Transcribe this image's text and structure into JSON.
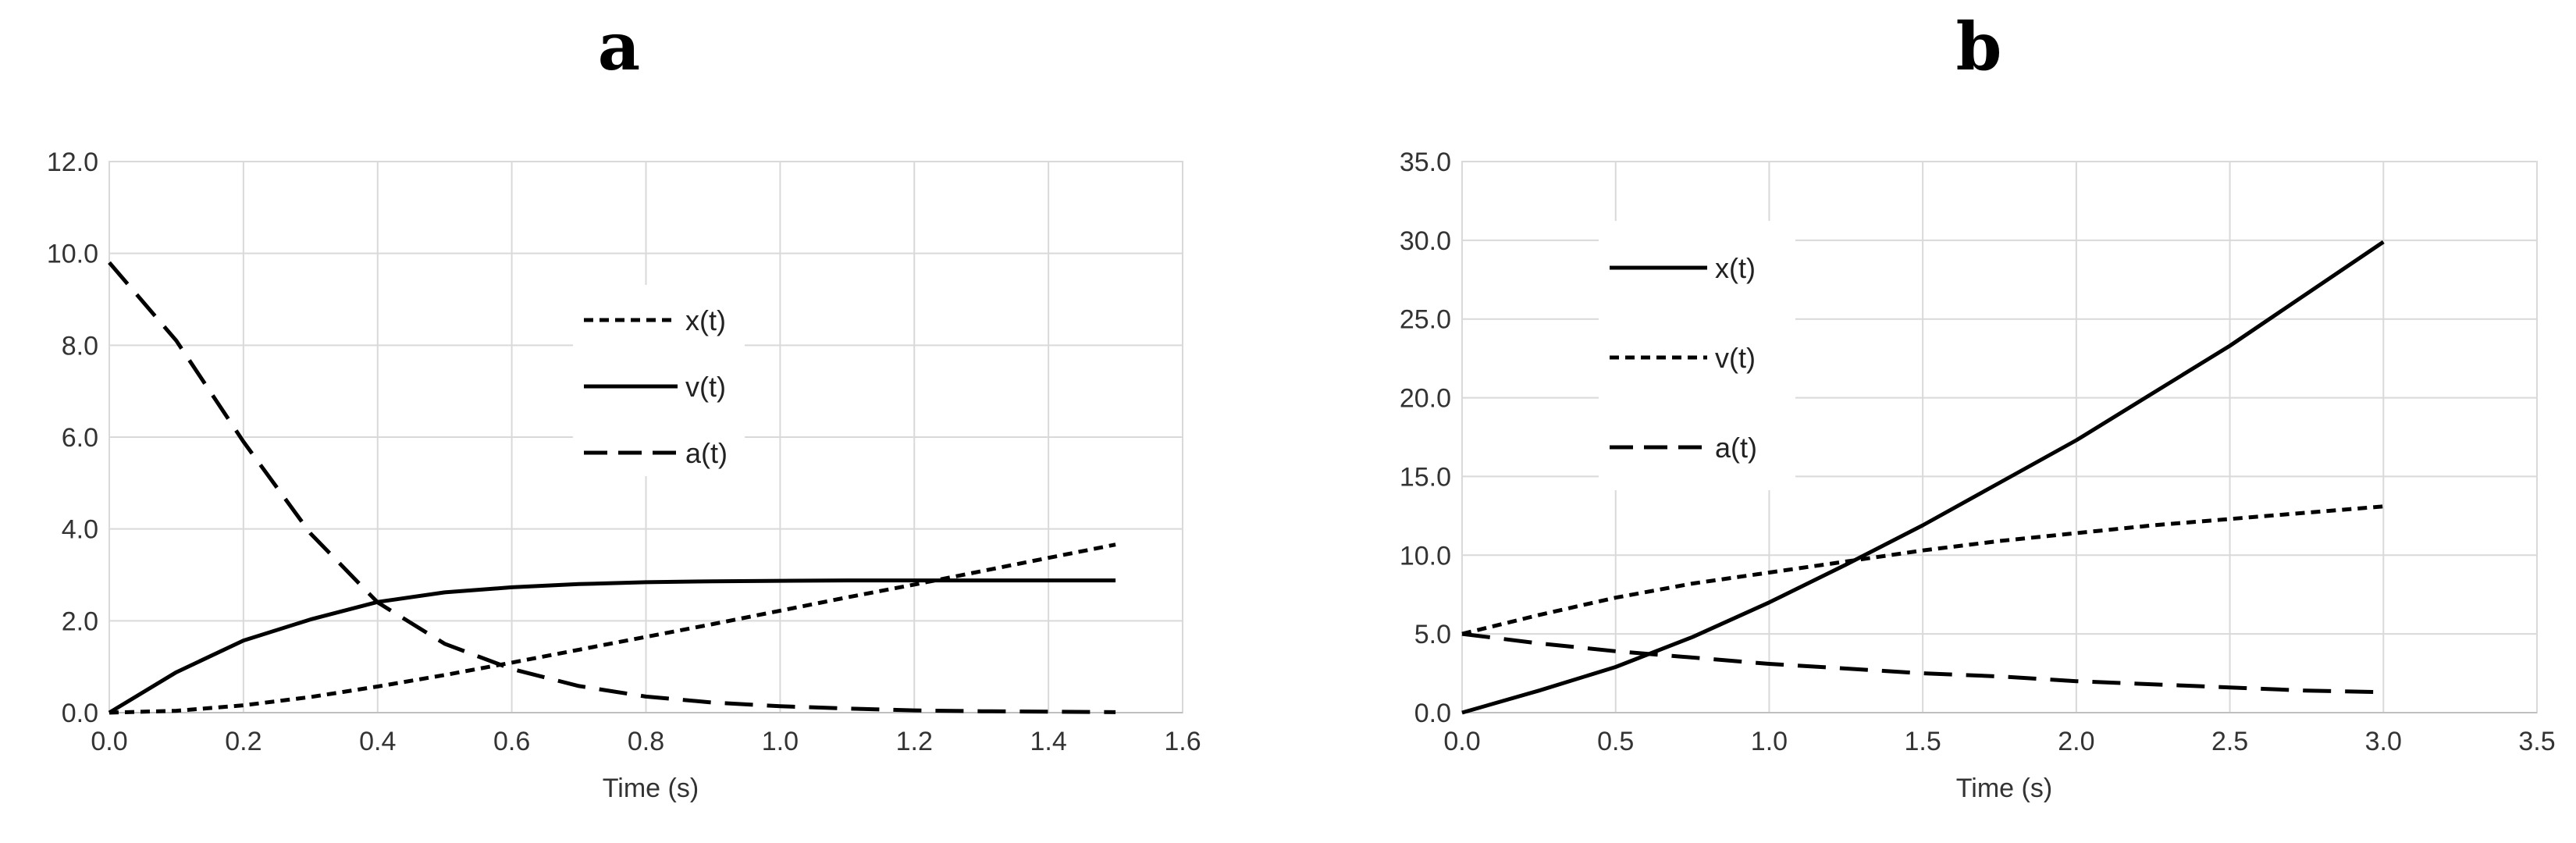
{
  "chart_data": [
    {
      "type": "line",
      "title": "a",
      "xlabel": "Time (s)",
      "ylabel": "",
      "xlim": [
        0,
        1.6
      ],
      "ylim": [
        0,
        12
      ],
      "x_ticks": [
        "0.0",
        "0.2",
        "0.4",
        "0.6",
        "0.8",
        "1.0",
        "1.2",
        "1.4",
        "1.6"
      ],
      "y_ticks": [
        "0.0",
        "2.0",
        "4.0",
        "6.0",
        "8.0",
        "10.0",
        "12.0"
      ],
      "grid": true,
      "legend": {
        "position": "center",
        "entries": [
          "x(t)",
          "v(t)",
          "a(t)"
        ]
      },
      "series": [
        {
          "name": "x(t)",
          "style": "dotted",
          "x": [
            0,
            0.1,
            0.2,
            0.3,
            0.4,
            0.5,
            0.6,
            0.7,
            0.8,
            0.9,
            1.0,
            1.1,
            1.2,
            1.3,
            1.4,
            1.5
          ],
          "y": [
            0,
            0.04,
            0.16,
            0.34,
            0.57,
            0.82,
            1.09,
            1.37,
            1.65,
            1.93,
            2.22,
            2.51,
            2.79,
            3.08,
            3.37,
            3.66
          ]
        },
        {
          "name": "v(t)",
          "style": "solid",
          "x": [
            0,
            0.1,
            0.2,
            0.3,
            0.4,
            0.5,
            0.6,
            0.7,
            0.8,
            0.9,
            1.0,
            1.1,
            1.2,
            1.3,
            1.4,
            1.5
          ],
          "y": [
            0,
            0.88,
            1.57,
            2.03,
            2.41,
            2.62,
            2.73,
            2.8,
            2.84,
            2.86,
            2.87,
            2.88,
            2.88,
            2.88,
            2.88,
            2.88
          ]
        },
        {
          "name": "a(t)",
          "style": "dashed",
          "x": [
            0,
            0.1,
            0.2,
            0.3,
            0.4,
            0.5,
            0.6,
            0.7,
            0.8,
            0.9,
            1.0,
            1.1,
            1.2,
            1.3,
            1.4,
            1.5
          ],
          "y": [
            9.8,
            8.1,
            5.9,
            3.9,
            2.4,
            1.5,
            0.95,
            0.58,
            0.35,
            0.22,
            0.14,
            0.09,
            0.05,
            0.03,
            0.02,
            0.01
          ]
        }
      ]
    },
    {
      "type": "line",
      "title": "b",
      "xlabel": "Time (s)",
      "ylabel": "",
      "xlim": [
        0,
        3.5
      ],
      "ylim": [
        0,
        35
      ],
      "x_ticks": [
        "0.0",
        "0.5",
        "1.0",
        "1.5",
        "2.0",
        "2.5",
        "3.0",
        "3.5"
      ],
      "y_ticks": [
        "0.0",
        "5.0",
        "10.0",
        "15.0",
        "20.0",
        "25.0",
        "30.0",
        "35.0"
      ],
      "grid": true,
      "legend": {
        "position": "top-left",
        "entries": [
          "x(t)",
          "v(t)",
          "a(t)"
        ]
      },
      "series": [
        {
          "name": "x(t)",
          "style": "solid",
          "x": [
            0,
            0.25,
            0.5,
            0.75,
            1.0,
            1.25,
            1.5,
            1.75,
            2.0,
            2.25,
            2.5,
            2.75,
            3.0
          ],
          "y": [
            0,
            1.4,
            2.9,
            4.8,
            7.0,
            9.4,
            11.9,
            14.6,
            17.3,
            20.3,
            23.3,
            26.6,
            29.9
          ]
        },
        {
          "name": "v(t)",
          "style": "dotted",
          "x": [
            0,
            0.25,
            0.5,
            0.75,
            1.0,
            1.25,
            1.5,
            1.75,
            2.0,
            2.25,
            2.5,
            2.75,
            3.0
          ],
          "y": [
            5.0,
            6.2,
            7.3,
            8.2,
            8.9,
            9.6,
            10.3,
            10.9,
            11.4,
            11.9,
            12.3,
            12.7,
            13.1
          ]
        },
        {
          "name": "a(t)",
          "style": "dashed",
          "x": [
            0,
            0.25,
            0.5,
            0.75,
            1.0,
            1.25,
            1.5,
            1.75,
            2.0,
            2.25,
            2.5,
            2.75,
            3.0
          ],
          "y": [
            5.0,
            4.4,
            3.9,
            3.5,
            3.1,
            2.8,
            2.5,
            2.3,
            2.0,
            1.8,
            1.6,
            1.4,
            1.3
          ]
        }
      ]
    }
  ]
}
